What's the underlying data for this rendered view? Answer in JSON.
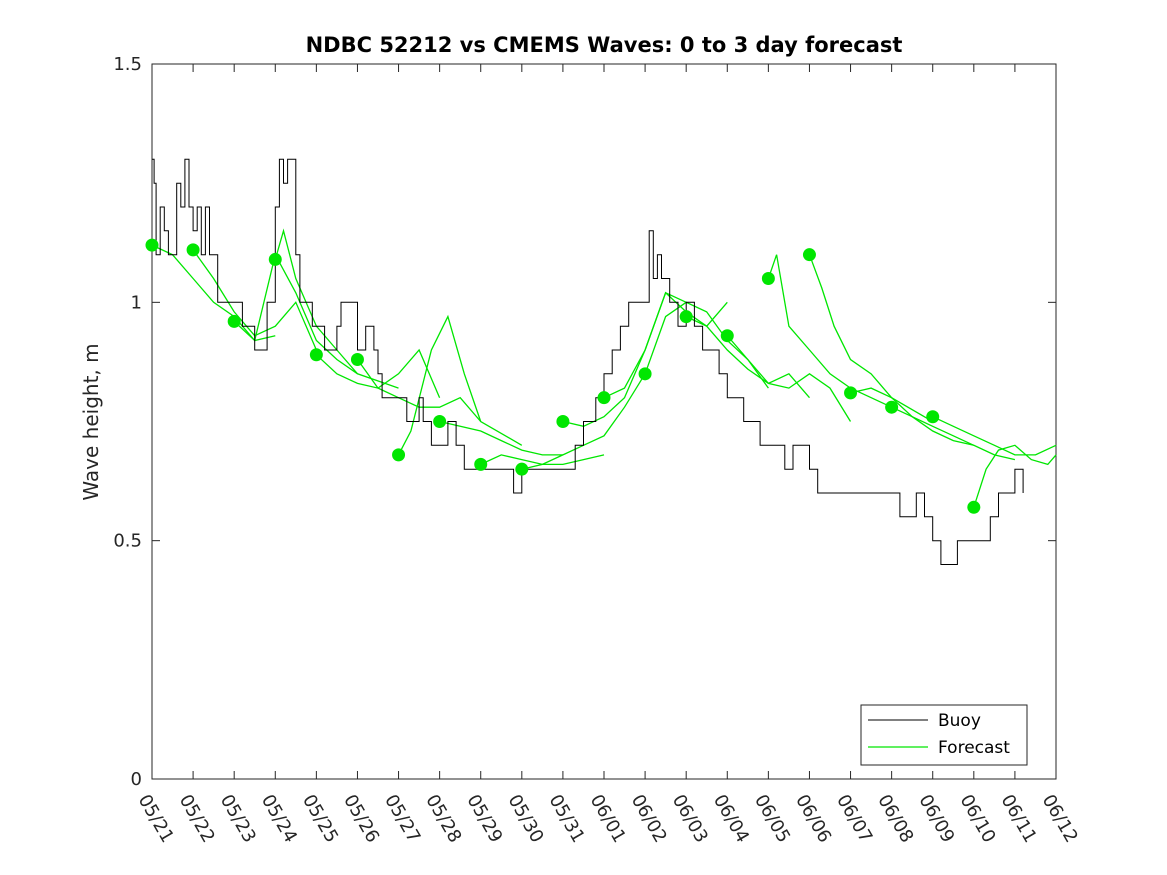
{
  "chart_data": {
    "type": "line",
    "title": "NDBC 52212 vs CMEMS Waves: 0 to 3 day forecast",
    "xlabel": "",
    "ylabel": "Wave height, m",
    "ylim": [
      0,
      1.5
    ],
    "yticks": [
      "0",
      "0.5",
      "1",
      "1.5"
    ],
    "x_ticks": [
      "05/21",
      "05/22",
      "05/23",
      "05/24",
      "05/25",
      "05/26",
      "05/27",
      "05/28",
      "05/29",
      "05/30",
      "05/31",
      "06/01",
      "06/02",
      "06/03",
      "06/04",
      "06/05",
      "06/06",
      "06/07",
      "06/08",
      "06/09",
      "06/10",
      "06/11",
      "06/12"
    ],
    "xlim_days": [
      0,
      22
    ],
    "grid": false,
    "legend": {
      "placement": "bottom-right",
      "entries": [
        "Buoy",
        "Forecast"
      ]
    },
    "colors": {
      "buoy": "#000000",
      "forecast": "#00e600"
    },
    "series": [
      {
        "name": "Buoy",
        "x_day": [
          0,
          0.05,
          0.1,
          0.2,
          0.3,
          0.4,
          0.5,
          0.6,
          0.7,
          0.8,
          0.9,
          1.0,
          1.1,
          1.2,
          1.3,
          1.4,
          1.5,
          1.6,
          1.7,
          1.8,
          1.9,
          2.0,
          2.2,
          2.4,
          2.5,
          2.6,
          2.8,
          3.0,
          3.1,
          3.2,
          3.3,
          3.5,
          3.6,
          3.8,
          3.9,
          4.0,
          4.2,
          4.4,
          4.5,
          4.6,
          4.8,
          5.0,
          5.2,
          5.4,
          5.5,
          5.6,
          5.8,
          6.0,
          6.2,
          6.4,
          6.5,
          6.6,
          6.8,
          7.0,
          7.2,
          7.4,
          7.6,
          7.8,
          8.0,
          8.2,
          8.5,
          8.8,
          9.0,
          9.2,
          9.5,
          9.8,
          10.0,
          10.3,
          10.5,
          10.8,
          11.0,
          11.2,
          11.4,
          11.6,
          11.8,
          12.0,
          12.1,
          12.2,
          12.3,
          12.4,
          12.6,
          12.8,
          13.0,
          13.2,
          13.4,
          13.6,
          13.8,
          14.0,
          14.2,
          14.4,
          14.6,
          14.8,
          15.0,
          15.2,
          15.4,
          15.6,
          15.8,
          16.0,
          16.2,
          16.4,
          16.6,
          16.8,
          17.0,
          17.2,
          17.4,
          17.6,
          17.8,
          18.0,
          18.2,
          18.4,
          18.6,
          18.8,
          19.0,
          19.2,
          19.4,
          19.6,
          19.8,
          20.0,
          20.2,
          20.4,
          20.6,
          20.8,
          21.0,
          21.2
        ],
        "y": [
          1.3,
          1.25,
          1.1,
          1.2,
          1.15,
          1.1,
          1.1,
          1.25,
          1.2,
          1.3,
          1.2,
          1.15,
          1.2,
          1.1,
          1.2,
          1.1,
          1.1,
          1.0,
          1.0,
          1.0,
          1.0,
          1.0,
          0.95,
          0.95,
          0.9,
          0.9,
          1.0,
          1.2,
          1.3,
          1.25,
          1.3,
          1.1,
          1.0,
          1.0,
          0.95,
          0.95,
          0.9,
          0.9,
          0.95,
          1.0,
          1.0,
          0.9,
          0.95,
          0.9,
          0.85,
          0.8,
          0.8,
          0.8,
          0.75,
          0.75,
          0.8,
          0.75,
          0.7,
          0.7,
          0.75,
          0.7,
          0.65,
          0.65,
          0.65,
          0.65,
          0.65,
          0.6,
          0.65,
          0.65,
          0.65,
          0.65,
          0.65,
          0.7,
          0.75,
          0.8,
          0.85,
          0.9,
          0.95,
          1.0,
          1.0,
          1.0,
          1.15,
          1.05,
          1.1,
          1.05,
          1.0,
          0.95,
          1.0,
          0.95,
          0.9,
          0.9,
          0.85,
          0.8,
          0.8,
          0.75,
          0.75,
          0.7,
          0.7,
          0.7,
          0.65,
          0.7,
          0.7,
          0.65,
          0.6,
          0.6,
          0.6,
          0.6,
          0.6,
          0.6,
          0.6,
          0.6,
          0.6,
          0.6,
          0.55,
          0.55,
          0.6,
          0.55,
          0.5,
          0.45,
          0.45,
          0.5,
          0.5,
          0.5,
          0.5,
          0.55,
          0.6,
          0.6,
          0.65,
          0.6
        ]
      },
      {
        "name": "Forecast",
        "runs": [
          {
            "x_day": [
              0,
              0.5,
              1.0,
              1.5,
              2.0,
              2.5,
              3.0
            ],
            "y": [
              1.12,
              1.1,
              1.05,
              1.0,
              0.97,
              0.92,
              0.93
            ]
          },
          {
            "x_day": [
              1,
              1.5,
              2.0,
              2.5,
              3.0,
              3.5,
              4.0
            ],
            "y": [
              1.11,
              1.05,
              0.98,
              0.93,
              0.95,
              1.0,
              0.9
            ]
          },
          {
            "x_day": [
              2,
              2.5,
              3.0,
              3.5,
              4.0,
              4.5,
              5.0
            ],
            "y": [
              0.96,
              0.92,
              1.1,
              1.02,
              0.92,
              0.88,
              0.85
            ]
          },
          {
            "x_day": [
              3,
              3.2,
              3.5,
              4.0,
              4.5,
              5.0,
              6.0
            ],
            "y": [
              1.09,
              1.15,
              1.05,
              0.95,
              0.9,
              0.85,
              0.82
            ]
          },
          {
            "x_day": [
              4,
              4.5,
              5.0,
              5.5,
              6.0,
              6.5,
              7.0
            ],
            "y": [
              0.89,
              0.85,
              0.83,
              0.82,
              0.85,
              0.9,
              0.8
            ]
          },
          {
            "x_day": [
              5,
              5.5,
              6.0,
              6.5,
              7.0,
              7.5,
              8.0
            ],
            "y": [
              0.88,
              0.82,
              0.8,
              0.78,
              0.78,
              0.8,
              0.75
            ]
          },
          {
            "x_day": [
              6,
              6.3,
              6.8,
              7.2,
              7.6,
              8.0,
              9.0
            ],
            "y": [
              0.68,
              0.73,
              0.9,
              0.97,
              0.85,
              0.75,
              0.7
            ]
          },
          {
            "x_day": [
              7,
              7.5,
              8.0,
              8.5,
              9.0,
              9.5,
              10.0
            ],
            "y": [
              0.75,
              0.74,
              0.73,
              0.71,
              0.69,
              0.68,
              0.68
            ]
          },
          {
            "x_day": [
              8,
              8.5,
              9.0,
              9.5,
              10.0,
              10.5,
              11.0
            ],
            "y": [
              0.66,
              0.68,
              0.67,
              0.66,
              0.66,
              0.67,
              0.68
            ]
          },
          {
            "x_day": [
              9,
              9.5,
              10.0,
              10.5,
              11.0,
              11.5,
              12.0
            ],
            "y": [
              0.65,
              0.66,
              0.68,
              0.7,
              0.72,
              0.78,
              0.85
            ]
          },
          {
            "x_day": [
              10,
              10.5,
              11.0,
              11.5,
              12.0,
              12.5,
              13.0
            ],
            "y": [
              0.75,
              0.74,
              0.76,
              0.8,
              0.9,
              1.02,
              1.0
            ]
          },
          {
            "x_day": [
              11,
              11.5,
              12.0,
              12.5,
              13.0,
              13.5,
              14.0
            ],
            "y": [
              0.8,
              0.82,
              0.9,
              1.02,
              0.98,
              0.95,
              1.0
            ]
          },
          {
            "x_day": [
              12,
              12.5,
              13.0,
              13.5,
              14.0,
              14.5,
              15.0
            ],
            "y": [
              0.85,
              0.97,
              1.0,
              0.98,
              0.92,
              0.88,
              0.82
            ]
          },
          {
            "x_day": [
              13,
              13.5,
              14.0,
              14.5,
              15.0,
              15.5,
              16.0
            ],
            "y": [
              0.97,
              0.95,
              0.9,
              0.86,
              0.83,
              0.85,
              0.8
            ]
          },
          {
            "x_day": [
              14,
              14.5,
              15.0,
              15.5,
              16.0,
              16.5,
              17.0
            ],
            "y": [
              0.93,
              0.88,
              0.83,
              0.82,
              0.85,
              0.82,
              0.75
            ]
          },
          {
            "x_day": [
              15,
              15.2,
              15.5,
              16.0,
              16.5,
              17.0,
              18.0
            ],
            "y": [
              1.05,
              1.1,
              0.95,
              0.9,
              0.85,
              0.82,
              0.78
            ]
          },
          {
            "x_day": [
              16,
              16.3,
              16.6,
              17.0,
              17.5,
              18.0,
              19.0
            ],
            "y": [
              1.1,
              1.03,
              0.95,
              0.88,
              0.85,
              0.8,
              0.75
            ]
          },
          {
            "x_day": [
              17,
              17.5,
              18.0,
              18.5,
              19.0,
              19.5,
              20.0
            ],
            "y": [
              0.81,
              0.82,
              0.8,
              0.76,
              0.74,
              0.72,
              0.7
            ]
          },
          {
            "x_day": [
              18,
              18.5,
              19.0,
              19.5,
              20.0,
              20.5,
              21.0
            ],
            "y": [
              0.78,
              0.76,
              0.73,
              0.71,
              0.7,
              0.68,
              0.67
            ]
          },
          {
            "x_day": [
              19,
              19.5,
              20.0,
              20.5,
              21.0,
              21.5,
              22.0
            ],
            "y": [
              0.76,
              0.74,
              0.72,
              0.7,
              0.68,
              0.68,
              0.7
            ]
          },
          {
            "x_day": [
              20,
              20.3,
              20.6,
              21.0,
              21.4,
              21.8,
              22.0
            ],
            "y": [
              0.57,
              0.65,
              0.69,
              0.7,
              0.67,
              0.66,
              0.68
            ]
          }
        ],
        "init_points": {
          "x_day": [
            0,
            1,
            2,
            3,
            4,
            5,
            6,
            7,
            8,
            9,
            10,
            11,
            12,
            13,
            14,
            15,
            16,
            17,
            18,
            19,
            20
          ],
          "y": [
            1.12,
            1.11,
            0.96,
            1.09,
            0.89,
            0.88,
            0.68,
            0.75,
            0.66,
            0.65,
            0.75,
            0.8,
            0.85,
            0.97,
            0.93,
            1.05,
            1.1,
            0.81,
            0.78,
            0.76,
            0.57
          ]
        }
      }
    ]
  }
}
